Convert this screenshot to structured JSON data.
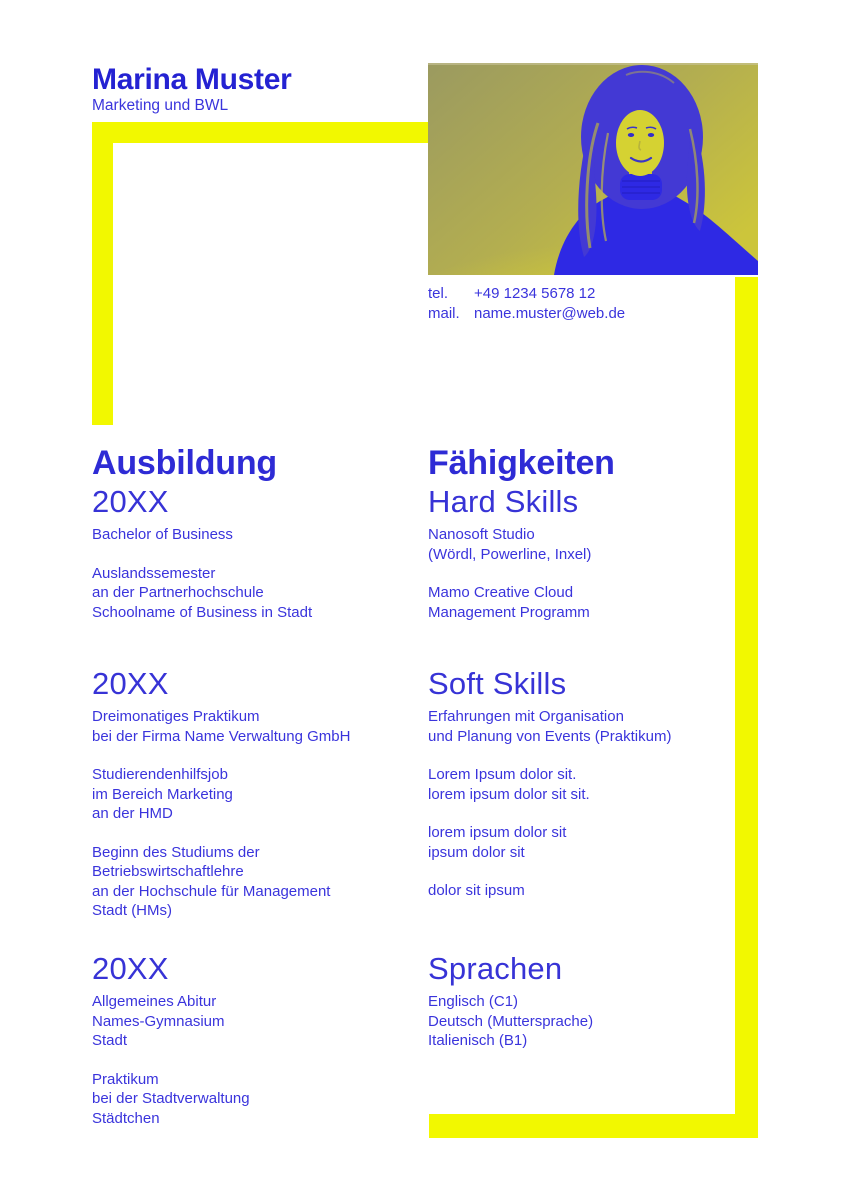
{
  "header": {
    "name": "Marina Muster",
    "subtitle": "Marketing und BWL"
  },
  "contact": {
    "tel_label": "tel.",
    "tel_value": "+49 1234 5678 12",
    "mail_label": "mail.",
    "mail_value": "name.muster@web.de"
  },
  "education": {
    "title": "Ausbildung",
    "sections": [
      {
        "year": "20XX",
        "paragraphs": [
          [
            "Bachelor of Business"
          ],
          [
            "Auslandssemester",
            "an der Partnerhochschule",
            "Schoolname of Business in Stadt"
          ]
        ]
      },
      {
        "year": "20XX",
        "paragraphs": [
          [
            "Dreimonatiges Praktikum",
            "bei der Firma Name Verwaltung GmbH"
          ],
          [
            "Studierendenhilfsjob",
            "im Bereich Marketing",
            "an der HMD"
          ],
          [
            "Beginn des Studiums der",
            "Betriebswirtschaftlehre",
            "an der Hochschule für Management",
            "Stadt (HMs)"
          ]
        ]
      },
      {
        "year": "20XX",
        "paragraphs": [
          [
            "Allgemeines Abitur",
            "Names-Gymnasium",
            "Stadt"
          ],
          [
            "Praktikum",
            "bei der Stadtverwaltung",
            "Städtchen"
          ]
        ]
      }
    ]
  },
  "skills": {
    "title": "Fähigkeiten",
    "sections": [
      {
        "heading": "Hard Skills",
        "paragraphs": [
          [
            "Nanosoft Studio",
            "(Wördl, Powerline, Inxel)"
          ],
          [
            "Mamo Creative Cloud",
            "Management Programm"
          ]
        ]
      },
      {
        "heading": "Soft Skills",
        "paragraphs": [
          [
            "Erfahrungen mit Organisation",
            "und Planung von Events (Praktikum)"
          ],
          [
            "Lorem Ipsum dolor sit.",
            "lorem ipsum dolor sit sit."
          ],
          [
            "lorem ipsum dolor sit",
            "ipsum dolor sit"
          ],
          [
            "dolor sit ipsum"
          ]
        ]
      },
      {
        "heading": "Sprachen",
        "paragraphs": [
          [
            "Englisch (C1)",
            "Deutsch (Muttersprache)",
            "Italienisch (B1)"
          ]
        ]
      }
    ]
  },
  "colors": {
    "accent_yellow": "#f2f800",
    "heading_blue": "#2e2bd5",
    "body_blue": "#3a34dc"
  },
  "photo": {
    "description": "duotone portrait, yellow background, blue figure"
  }
}
